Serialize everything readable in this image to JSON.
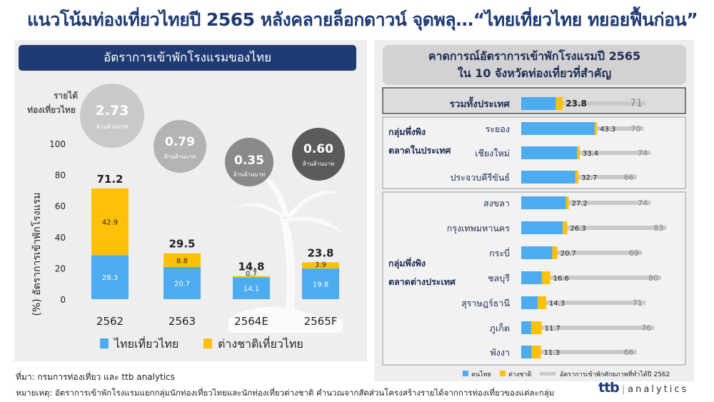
{
  "title": "แนวโน้มท่องเที่ยวไทยปี 2565 หลังคลายล็อกดาวน์ จุดพลุ…“ไทยเที่ยวไทย ทยอยฟื้นก่อน”",
  "left": {
    "header": "อัตราการเข้าพักโรงแรมของไทย",
    "revenue_label_line1": "รายได้",
    "revenue_label_line2": "ท่องเที่ยวไทย",
    "revenue_unit": "ล้านล้านบาท",
    "revenue": [
      "2.73",
      "0.79",
      "0.35",
      "0.60"
    ]
  },
  "right": {
    "header_line1": "คาดการณ์อัตราการเข้าพักโรงแรมปี 2565",
    "header_line2": "ใน 10 จังหวัดท่องเที่ยวที่สำคัญ",
    "group_domestic_line1": "กลุ่มพึ่งพิง",
    "group_domestic_line2": "ตลาดในประเทศ",
    "group_foreign_line1": "กลุ่มพึ่งพิง",
    "group_foreign_line2": "ตลาดต่างประเทศ"
  },
  "colors": {
    "thai": "#4dabf0",
    "foreign": "#ffc107",
    "potential": "#c9c9c9",
    "navy": "#1f3b73"
  },
  "chart_data": [
    {
      "type": "bar",
      "stacked": true,
      "categories": [
        "2562",
        "2563",
        "2564E",
        "2565F"
      ],
      "series": [
        {
          "name": "ไทยเที่ยวไทย",
          "values": [
            28.3,
            20.7,
            14.1,
            19.8
          ]
        },
        {
          "name": "ต่างชาติเที่ยวไทย",
          "values": [
            42.9,
            8.8,
            0.7,
            3.9
          ]
        }
      ],
      "totals": [
        "71.2",
        "29.5",
        "14.8",
        "23.8"
      ],
      "ylabel": "(%) อัตราการเข้าพักโรงแรม",
      "ylim": [
        0,
        100
      ],
      "yticks": [
        0,
        20,
        40,
        60,
        80,
        100
      ],
      "legend": "bottom"
    },
    {
      "type": "bar",
      "orientation": "horizontal",
      "xlim": [
        0,
        100
      ],
      "categories": [
        "รวมทั้งประเทศ",
        "ระยอง",
        "เชียงใหม่",
        "ประจวบคีรีขันธ์",
        "สงขลา",
        "กรุงเทพมหานคร",
        "กระบี่",
        "ชลบุรี",
        "สุราษฎร์ธานี",
        "ภูเก็ต",
        "พังงา"
      ],
      "series": [
        {
          "name": "คนไทย",
          "values": [
            19.8,
            42.0,
            32.0,
            31.0,
            25.6,
            23.8,
            17.8,
            11.8,
            9.4,
            5.8,
            5.9
          ]
        },
        {
          "name": "ต่างชาติ",
          "values": [
            4.0,
            1.3,
            1.4,
            1.7,
            1.6,
            2.5,
            2.9,
            4.8,
            4.9,
            5.9,
            5.4
          ]
        },
        {
          "name": "อัตราการเข้าพักศักยภาพที่ทำได้ปี 2562",
          "values": [
            71,
            70,
            74,
            66,
            74,
            83,
            69,
            80,
            71,
            76,
            66
          ]
        }
      ],
      "totals": [
        "23.8",
        "43.3",
        "33.4",
        "32.7",
        "27.2",
        "26.3",
        "20.7",
        "16.6",
        "14.3",
        "11.7",
        "11.3"
      ],
      "legend": "bottom"
    }
  ],
  "footer": {
    "source": "ที่มา: กรมการท่องเที่ยว และ ttb analytics",
    "note": "หมายเหตุ: อัตราการเข้าพักโรงแรมแยกกลุ่มนักท่องเที่ยวไทยและนักท่องเที่ยวต่างชาติ คำนวณจากสัดส่วนโครงสร้างรายได้จากการท่องเที่ยวของแต่ละกลุ่ม",
    "logo_ttb": "ttb",
    "logo_sep": "|",
    "logo_analytics": "analytics"
  }
}
